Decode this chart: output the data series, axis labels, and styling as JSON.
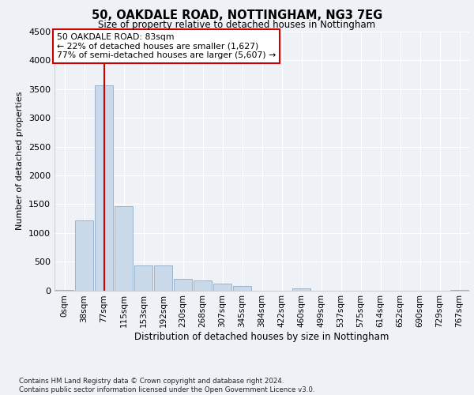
{
  "title1": "50, OAKDALE ROAD, NOTTINGHAM, NG3 7EG",
  "title2": "Size of property relative to detached houses in Nottingham",
  "xlabel": "Distribution of detached houses by size in Nottingham",
  "ylabel": "Number of detached properties",
  "footnote": "Contains HM Land Registry data © Crown copyright and database right 2024.\nContains public sector information licensed under the Open Government Licence v3.0.",
  "bar_labels": [
    "0sqm",
    "38sqm",
    "77sqm",
    "115sqm",
    "153sqm",
    "192sqm",
    "230sqm",
    "268sqm",
    "307sqm",
    "345sqm",
    "384sqm",
    "422sqm",
    "460sqm",
    "499sqm",
    "537sqm",
    "575sqm",
    "614sqm",
    "652sqm",
    "690sqm",
    "729sqm",
    "767sqm"
  ],
  "bar_values": [
    5,
    1220,
    3560,
    1460,
    430,
    430,
    195,
    165,
    110,
    80,
    0,
    0,
    30,
    0,
    0,
    0,
    0,
    0,
    0,
    0,
    5
  ],
  "bar_color": "#c9d9ea",
  "bar_edge_color": "#9ab4cc",
  "vline_x": 2,
  "vline_color": "#cc0000",
  "ylim": [
    0,
    4500
  ],
  "yticks": [
    0,
    500,
    1000,
    1500,
    2000,
    2500,
    3000,
    3500,
    4000,
    4500
  ],
  "annotation_text": "50 OAKDALE ROAD: 83sqm\n← 22% of detached houses are smaller (1,627)\n77% of semi-detached houses are larger (5,607) →",
  "annotation_box_color": "#ffffff",
  "annotation_box_edge_color": "#cc0000",
  "bg_color": "#eef2f7",
  "plot_bg_color": "#eef2f7",
  "grid_color": "#ffffff"
}
